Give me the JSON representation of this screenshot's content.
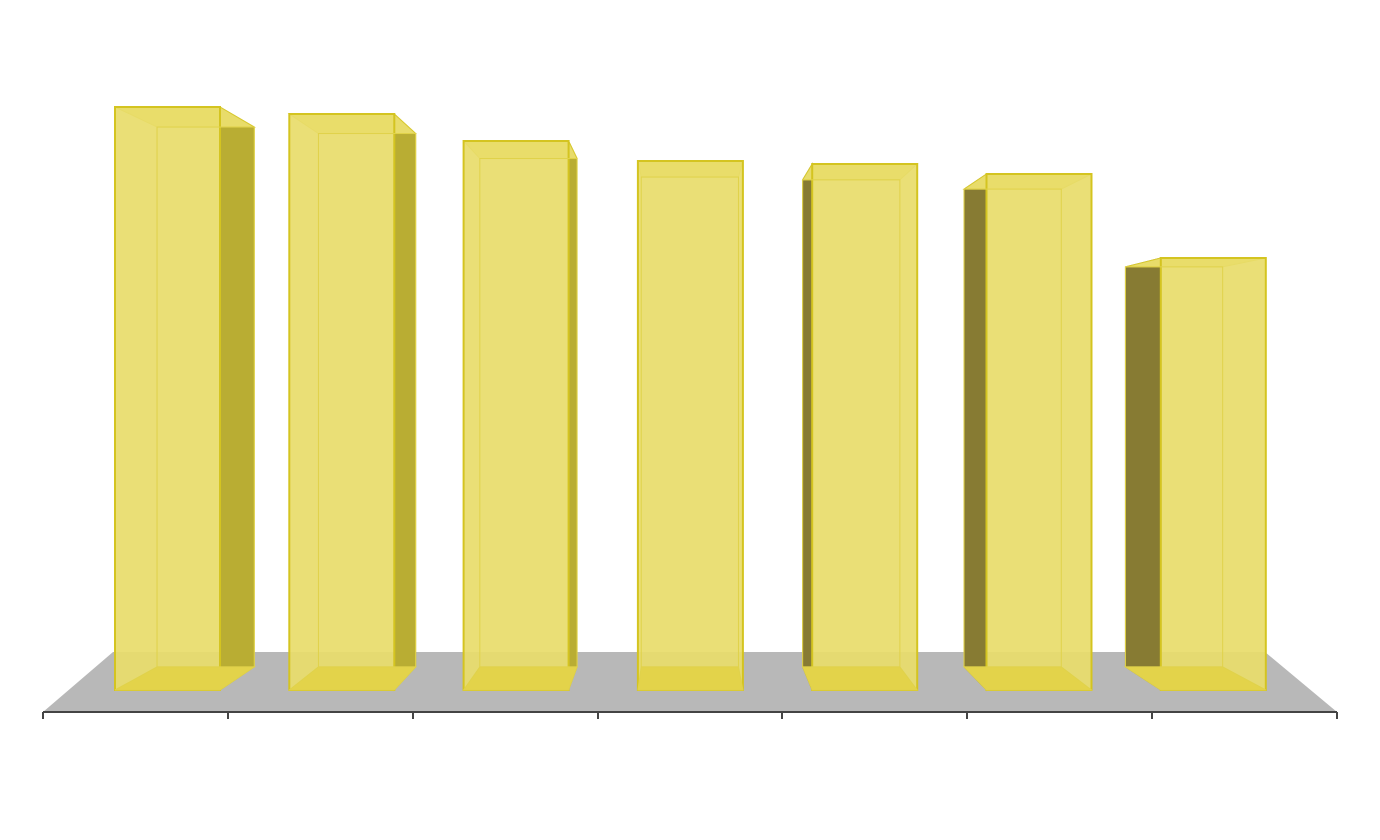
{
  "chart_data": {
    "type": "bar3d",
    "categories": [
      null,
      null,
      null,
      null,
      null,
      null,
      null
    ],
    "values": [
      583,
      576,
      549,
      529,
      526,
      516,
      432
    ],
    "color": "#e8dc6a",
    "ylim": [
      0,
      600
    ]
  }
}
